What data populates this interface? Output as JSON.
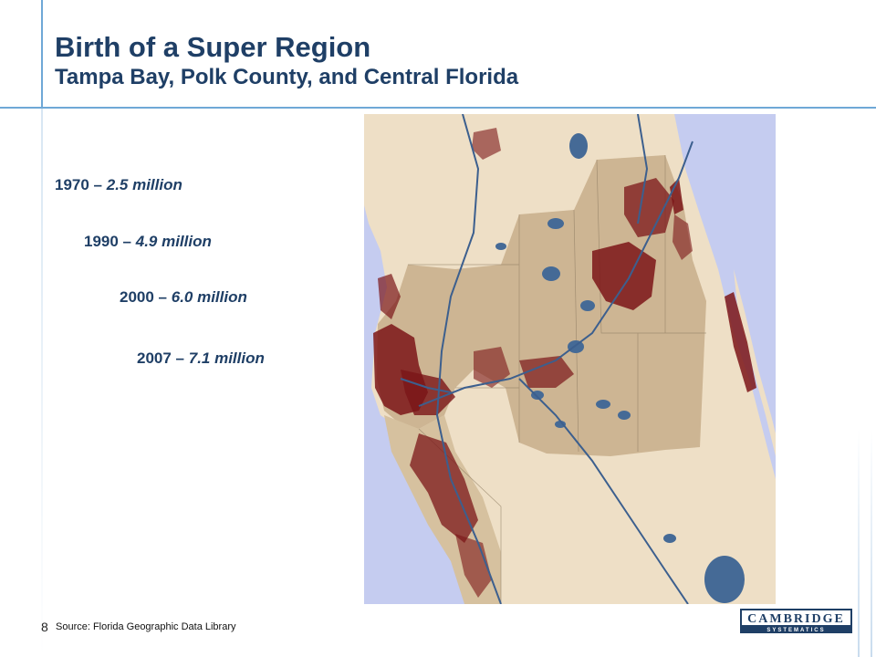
{
  "title": "Birth of a Super Region",
  "subtitle": "Tampa Bay, Polk County, and Central Florida",
  "population": [
    {
      "year": "1970",
      "sep": " – ",
      "value": "2.5 million"
    },
    {
      "year": "1990",
      "sep": " – ",
      "value": "4.9 million"
    },
    {
      "year": "2000",
      "sep": " – ",
      "value": "6.0 million"
    },
    {
      "year": "2007",
      "sep": " – ",
      "value": "7.1 million"
    }
  ],
  "footer": {
    "page_number": "8",
    "source": "Source: Florida Geographic Data Library"
  },
  "logo": {
    "line1": "CAMBRIDGE",
    "line2": "SYSTEMATICS"
  },
  "colors": {
    "title": "#1f3f66",
    "accent_rule": "#6fa8d6",
    "water": "#c5ccf0",
    "land": "#eedfc6",
    "region": "#cdb593",
    "urban": "#7b1518",
    "lakes": "#456a96",
    "roads": "#3c5f8e"
  }
}
